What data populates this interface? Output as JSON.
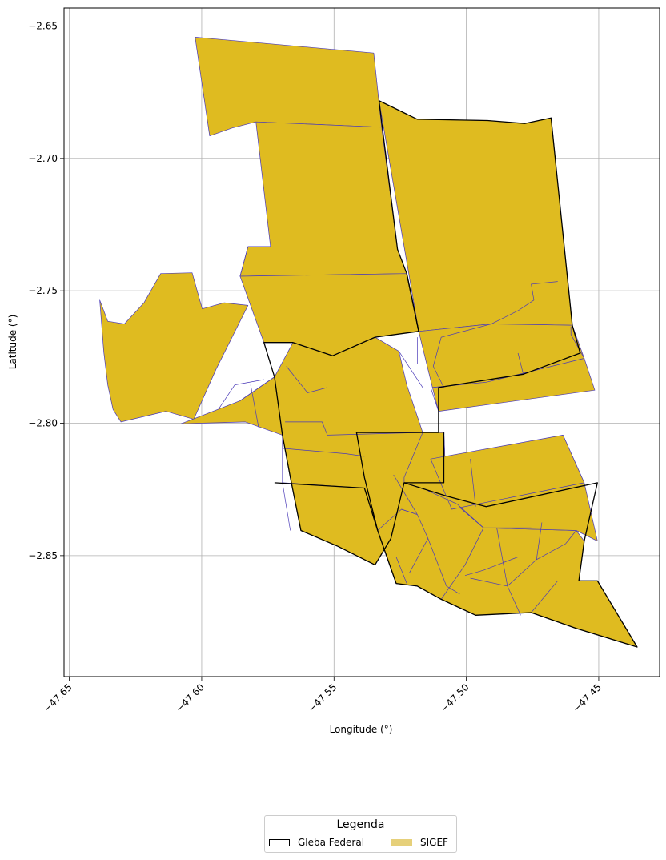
{
  "chart_data": {
    "type": "map",
    "xlabel": "Longitude (°)",
    "ylabel": "Latitude (°)",
    "xlim": [
      -47.652,
      -47.427
    ],
    "ylim": [
      -2.8957,
      -2.6432
    ],
    "x_ticks": [
      -47.65,
      -47.6,
      -47.55,
      -47.5,
      -47.45
    ],
    "x_tick_labels": [
      "−47.65",
      "−47.60",
      "−47.55",
      "−47.50",
      "−47.45"
    ],
    "y_ticks": [
      -2.65,
      -2.7,
      -2.75,
      -2.8,
      -2.85
    ],
    "y_tick_labels": [
      "−2.65",
      "−2.70",
      "−2.75",
      "−2.80",
      "−2.85"
    ],
    "grid": true,
    "colors": {
      "sigef_fill": "#dfbb20",
      "sigef_edge": "#4a3ab8",
      "gleba_edge": "#000000",
      "legend_sigef": "#e6d07a",
      "grid": "#b0b0b0"
    },
    "sigef_polygons": [
      [
        [
          -47.6025,
          -2.6542
        ],
        [
          -47.535,
          -2.6602
        ],
        [
          -47.532,
          -2.6882
        ],
        [
          -47.5795,
          -2.6862
        ],
        [
          -47.5885,
          -2.6885
        ],
        [
          -47.597,
          -2.6915
        ],
        [
          -47.6025,
          -2.6542
        ]
      ],
      [
        [
          -47.5795,
          -2.6862
        ],
        [
          -47.532,
          -2.6882
        ],
        [
          -47.526,
          -2.7343
        ],
        [
          -47.5225,
          -2.7435
        ],
        [
          -47.5855,
          -2.7445
        ],
        [
          -47.5825,
          -2.7333
        ],
        [
          -47.574,
          -2.7333
        ],
        [
          -47.5795,
          -2.6862
        ]
      ],
      [
        [
          -47.5855,
          -2.7445
        ],
        [
          -47.5225,
          -2.7435
        ],
        [
          -47.518,
          -2.7653
        ],
        [
          -47.5345,
          -2.7675
        ],
        [
          -47.5505,
          -2.7745
        ],
        [
          -47.5655,
          -2.7695
        ],
        [
          -47.5765,
          -2.7695
        ],
        [
          -47.5855,
          -2.7445
        ]
      ],
      [
        [
          -47.533,
          -2.6782
        ],
        [
          -47.5185,
          -2.6852
        ],
        [
          -47.492,
          -2.6857
        ],
        [
          -47.478,
          -2.6868
        ],
        [
          -47.468,
          -2.6847
        ],
        [
          -47.46,
          -2.763
        ],
        [
          -47.4905,
          -2.7625
        ],
        [
          -47.518,
          -2.7653
        ],
        [
          -47.533,
          -2.6782
        ]
      ],
      [
        [
          -47.518,
          -2.7653
        ],
        [
          -47.4905,
          -2.7625
        ],
        [
          -47.46,
          -2.763
        ],
        [
          -47.4555,
          -2.7755
        ],
        [
          -47.4785,
          -2.7815
        ],
        [
          -47.4925,
          -2.7845
        ],
        [
          -47.5128,
          -2.7865
        ],
        [
          -47.518,
          -2.7653
        ]
      ],
      [
        [
          -47.5128,
          -2.7865
        ],
        [
          -47.4925,
          -2.7845
        ],
        [
          -47.4555,
          -2.7755
        ],
        [
          -47.4515,
          -2.7875
        ],
        [
          -47.5105,
          -2.7955
        ],
        [
          -47.5128,
          -2.7865
        ]
      ],
      [
        [
          -47.6385,
          -2.7535
        ],
        [
          -47.637,
          -2.773
        ],
        [
          -47.6355,
          -2.7855
        ],
        [
          -47.6335,
          -2.7948
        ],
        [
          -47.6305,
          -2.7995
        ],
        [
          -47.6135,
          -2.7955
        ],
        [
          -47.603,
          -2.7985
        ],
        [
          -47.5945,
          -2.7795
        ],
        [
          -47.5825,
          -2.7555
        ],
        [
          -47.5915,
          -2.7545
        ],
        [
          -47.5998,
          -2.7568
        ],
        [
          -47.6036,
          -2.7432
        ],
        [
          -47.6155,
          -2.7435
        ],
        [
          -47.6218,
          -2.7545
        ],
        [
          -47.6292,
          -2.7625
        ],
        [
          -47.6355,
          -2.7615
        ],
        [
          -47.6385,
          -2.7535
        ]
      ],
      [
        [
          -47.6078,
          -2.8002
        ],
        [
          -47.5835,
          -2.7995
        ],
        [
          -47.5695,
          -2.8045
        ],
        [
          -47.5665,
          -2.8205
        ],
        [
          -47.5625,
          -2.8405
        ],
        [
          -47.5485,
          -2.8465
        ],
        [
          -47.5345,
          -2.8535
        ],
        [
          -47.5285,
          -2.8435
        ],
        [
          -47.5235,
          -2.8205
        ],
        [
          -47.5165,
          -2.8035
        ],
        [
          -47.5225,
          -2.7855
        ],
        [
          -47.5255,
          -2.7728
        ],
        [
          -47.5345,
          -2.7675
        ],
        [
          -47.5505,
          -2.7745
        ],
        [
          -47.5655,
          -2.7695
        ],
        [
          -47.5725,
          -2.7825
        ],
        [
          -47.5855,
          -2.7915
        ],
        [
          -47.6078,
          -2.8002
        ]
      ],
      [
        [
          -47.5415,
          -2.8035
        ],
        [
          -47.5085,
          -2.8035
        ],
        [
          -47.5075,
          -2.8275
        ],
        [
          -47.4935,
          -2.8395
        ],
        [
          -47.4585,
          -2.8405
        ],
        [
          -47.4555,
          -2.8445
        ],
        [
          -47.4575,
          -2.8595
        ],
        [
          -47.4505,
          -2.8595
        ],
        [
          -47.4355,
          -2.8845
        ],
        [
          -47.4585,
          -2.8775
        ],
        [
          -47.4755,
          -2.8715
        ],
        [
          -47.4965,
          -2.8725
        ],
        [
          -47.5095,
          -2.8665
        ],
        [
          -47.5185,
          -2.8615
        ],
        [
          -47.5265,
          -2.8605
        ],
        [
          -47.5335,
          -2.8405
        ],
        [
          -47.5385,
          -2.8205
        ],
        [
          -47.5415,
          -2.8035
        ]
      ],
      [
        [
          -47.5085,
          -2.8035
        ],
        [
          -47.5165,
          -2.8035
        ],
        [
          -47.5235,
          -2.8205
        ],
        [
          -47.5235,
          -2.8225
        ],
        [
          -47.5075,
          -2.8275
        ],
        [
          -47.5085,
          -2.8035
        ]
      ],
      [
        [
          -47.4935,
          -2.8395
        ],
        [
          -47.5075,
          -2.8275
        ],
        [
          -47.4995,
          -2.8135
        ],
        [
          -47.4635,
          -2.8045
        ],
        [
          -47.4555,
          -2.8225
        ],
        [
          -47.4505,
          -2.8445
        ],
        [
          -47.4585,
          -2.8405
        ],
        [
          -47.4935,
          -2.8395
        ]
      ],
      [
        [
          -47.5135,
          -2.8135
        ],
        [
          -47.4635,
          -2.8045
        ],
        [
          -47.4555,
          -2.8225
        ],
        [
          -47.5055,
          -2.8325
        ],
        [
          -47.5135,
          -2.8135
        ]
      ]
    ],
    "parcel_lines": [
      [
        [
          -47.5855,
          -2.7445
        ],
        [
          -47.5825,
          -2.7333
        ],
        [
          -47.574,
          -2.7333
        ]
      ],
      [
        [
          -47.5765,
          -2.7695
        ],
        [
          -47.5725,
          -2.7825
        ],
        [
          -47.5855,
          -2.7915
        ]
      ],
      [
        [
          -47.568,
          -2.7785
        ],
        [
          -47.56,
          -2.7885
        ],
        [
          -47.5525,
          -2.7865
        ]
      ],
      [
        [
          -47.5765,
          -2.7695
        ],
        [
          -47.5725,
          -2.7825
        ],
        [
          -47.5695,
          -2.8045
        ]
      ],
      [
        [
          -47.5695,
          -2.8045
        ],
        [
          -47.5695,
          -2.8225
        ],
        [
          -47.5665,
          -2.8405
        ]
      ],
      [
        [
          -47.5685,
          -2.7995
        ],
        [
          -47.5545,
          -2.7995
        ],
        [
          -47.5525,
          -2.8045
        ],
        [
          -47.5165,
          -2.8035
        ]
      ],
      [
        [
          -47.5695,
          -2.8095
        ],
        [
          -47.5455,
          -2.8115
        ],
        [
          -47.5385,
          -2.8125
        ]
      ],
      [
        [
          -47.5695,
          -2.8225
        ],
        [
          -47.5385,
          -2.8245
        ]
      ],
      [
        [
          -47.5815,
          -2.7855
        ],
        [
          -47.5785,
          -2.8015
        ]
      ],
      [
        [
          -47.5935,
          -2.7945
        ],
        [
          -47.5875,
          -2.7855
        ],
        [
          -47.5765,
          -2.7835
        ]
      ],
      [
        [
          -47.5335,
          -2.8405
        ],
        [
          -47.5245,
          -2.8325
        ],
        [
          -47.5185,
          -2.8345
        ]
      ],
      [
        [
          -47.5275,
          -2.8195
        ],
        [
          -47.5185,
          -2.8345
        ],
        [
          -47.5145,
          -2.8435
        ],
        [
          -47.5215,
          -2.8565
        ]
      ],
      [
        [
          -47.5145,
          -2.8435
        ],
        [
          -47.5075,
          -2.8615
        ],
        [
          -47.5025,
          -2.8645
        ]
      ],
      [
        [
          -47.4985,
          -2.8585
        ],
        [
          -47.4845,
          -2.8615
        ],
        [
          -47.4795,
          -2.8725
        ]
      ],
      [
        [
          -47.4845,
          -2.8615
        ],
        [
          -47.4735,
          -2.8515
        ],
        [
          -47.4625,
          -2.8455
        ],
        [
          -47.4585,
          -2.8405
        ]
      ],
      [
        [
          -47.4885,
          -2.8395
        ],
        [
          -47.4845,
          -2.8615
        ]
      ],
      [
        [
          -47.4715,
          -2.8375
        ],
        [
          -47.4735,
          -2.8515
        ]
      ],
      [
        [
          -47.4755,
          -2.8715
        ],
        [
          -47.4655,
          -2.8595
        ],
        [
          -47.4575,
          -2.8595
        ]
      ],
      [
        [
          -47.4935,
          -2.8395
        ],
        [
          -47.4755,
          -2.8395
        ]
      ],
      [
        [
          -47.4805,
          -2.8505
        ],
        [
          -47.4935,
          -2.8555
        ],
        [
          -47.5005,
          -2.8575
        ]
      ],
      [
        [
          -47.5145,
          -2.8255
        ],
        [
          -47.5035,
          -2.8305
        ],
        [
          -47.4935,
          -2.8395
        ]
      ],
      [
        [
          -47.4935,
          -2.8395
        ],
        [
          -47.5005,
          -2.8535
        ],
        [
          -47.5095,
          -2.8665
        ]
      ],
      [
        [
          -47.5245,
          -2.8325
        ],
        [
          -47.5185,
          -2.8345
        ]
      ],
      [
        [
          -47.5265,
          -2.8505
        ],
        [
          -47.5225,
          -2.8605
        ]
      ],
      [
        [
          -47.4985,
          -2.8135
        ],
        [
          -47.4965,
          -2.8315
        ]
      ],
      [
        [
          -47.4655,
          -2.7465
        ],
        [
          -47.4755,
          -2.7475
        ],
        [
          -47.4745,
          -2.7535
        ],
        [
          -47.4805,
          -2.7575
        ],
        [
          -47.4885,
          -2.7615
        ],
        [
          -47.4905,
          -2.7625
        ]
      ],
      [
        [
          -47.4905,
          -2.7625
        ],
        [
          -47.5095,
          -2.7675
        ],
        [
          -47.5125,
          -2.7785
        ],
        [
          -47.5085,
          -2.7865
        ]
      ],
      [
        [
          -47.5185,
          -2.7675
        ],
        [
          -47.5185,
          -2.7775
        ]
      ],
      [
        [
          -47.4605,
          -2.7635
        ],
        [
          -47.4605,
          -2.7665
        ],
        [
          -47.4555,
          -2.7755
        ]
      ],
      [
        [
          -47.5255,
          -2.7728
        ],
        [
          -47.5165,
          -2.7865
        ]
      ],
      [
        [
          -47.5135,
          -2.7865
        ],
        [
          -47.5105,
          -2.7955
        ]
      ],
      [
        [
          -47.4785,
          -2.7815
        ],
        [
          -47.4805,
          -2.7735
        ]
      ]
    ],
    "gleba_federal": [
      [
        [
          -47.533,
          -2.6782
        ],
        [
          -47.5185,
          -2.6852
        ],
        [
          -47.492,
          -2.6857
        ],
        [
          -47.478,
          -2.6868
        ],
        [
          -47.468,
          -2.6847
        ],
        [
          -47.46,
          -2.763
        ],
        [
          -47.457,
          -2.7735
        ],
        [
          -47.4785,
          -2.7815
        ],
        [
          -47.5105,
          -2.7865
        ],
        [
          -47.5105,
          -2.7955
        ],
        [
          -47.5105,
          -2.8035
        ],
        [
          -47.5415,
          -2.8035
        ],
        [
          -47.5385,
          -2.8205
        ],
        [
          -47.5335,
          -2.8405
        ],
        [
          -47.5265,
          -2.8605
        ],
        [
          -47.5185,
          -2.8615
        ],
        [
          -47.5095,
          -2.8665
        ],
        [
          -47.4965,
          -2.8725
        ],
        [
          -47.4755,
          -2.8715
        ],
        [
          -47.4585,
          -2.8775
        ],
        [
          -47.4355,
          -2.8845
        ],
        [
          -47.4505,
          -2.8595
        ],
        [
          -47.4575,
          -2.8595
        ],
        [
          -47.4555,
          -2.8445
        ],
        [
          -47.4505,
          -2.8225
        ],
        [
          -47.4925,
          -2.8315
        ],
        [
          -47.5075,
          -2.8275
        ],
        [
          -47.5235,
          -2.8225
        ],
        [
          -47.5285,
          -2.8435
        ],
        [
          -47.5345,
          -2.8535
        ],
        [
          -47.5485,
          -2.8465
        ],
        [
          -47.5625,
          -2.8405
        ],
        [
          -47.5665,
          -2.8205
        ],
        [
          -47.5695,
          -2.8045
        ],
        [
          -47.5725,
          -2.7825
        ],
        [
          -47.5765,
          -2.7695
        ],
        [
          -47.5655,
          -2.7695
        ],
        [
          -47.5505,
          -2.7745
        ],
        [
          -47.5345,
          -2.7675
        ],
        [
          -47.518,
          -2.7653
        ],
        [
          -47.5225,
          -2.7435
        ],
        [
          -47.526,
          -2.7343
        ],
        [
          -47.533,
          -2.6782
        ]
      ],
      [
        [
          -47.5725,
          -2.8225
        ],
        [
          -47.5385,
          -2.8245
        ],
        [
          -47.5335,
          -2.8405
        ]
      ],
      [
        [
          -47.5235,
          -2.8225
        ],
        [
          -47.5085,
          -2.8225
        ],
        [
          -47.5085,
          -2.8035
        ]
      ],
      [
        [
          -47.5225,
          -2.7435
        ],
        [
          -47.518,
          -2.7653
        ]
      ]
    ]
  },
  "legend": {
    "title": "Legenda",
    "items": [
      {
        "label": "Gleba Federal",
        "style": "outline"
      },
      {
        "label": "SIGEF",
        "style": "fill"
      }
    ]
  }
}
